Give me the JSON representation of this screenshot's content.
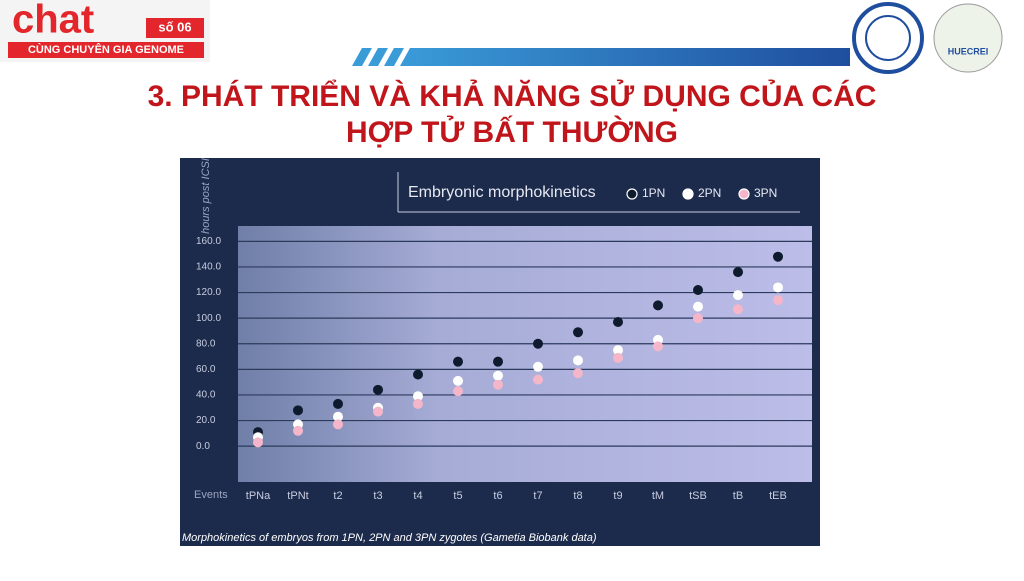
{
  "header": {
    "logo": "chat",
    "issue": "số 06",
    "tagline": "CÙNG CHUYÊN GIA GENOME",
    "title_lines": [
      "3. PHÁT TRIỂN VÀ KHẢ NĂNG SỬ DỤNG CỦA CÁC",
      "HỢP TỬ BẤT THƯỜNG"
    ],
    "partner_logo": "HUECREI"
  },
  "chart_data": {
    "type": "scatter",
    "title": "Embryonic morphokinetics",
    "y_label": "hours post ICSI",
    "x_label": "Events",
    "caption": "Morphokinetics of embryos from 1PN, 2PN and 3PN zygotes (Gametia Biobank data)",
    "categories": [
      "tPNa",
      "tPNt",
      "t2",
      "t3",
      "t4",
      "t5",
      "t6",
      "t7",
      "t8",
      "t9",
      "tM",
      "tSB",
      "tB",
      "tEB"
    ],
    "series": [
      {
        "name": "1PN",
        "color": "#0e1a2e",
        "values": [
          11,
          28,
          33,
          44,
          56,
          66,
          66,
          80,
          89,
          97,
          110,
          122,
          136,
          148
        ]
      },
      {
        "name": "2PN",
        "color": "#ffffff",
        "values": [
          7,
          17,
          23,
          30,
          39,
          51,
          55,
          62,
          67,
          75,
          83,
          109,
          118,
          124
        ]
      },
      {
        "name": "3PN",
        "color": "#f4b6c8",
        "values": [
          3,
          12,
          17,
          27,
          33,
          43,
          48,
          52,
          57,
          69,
          78,
          100,
          107,
          114
        ]
      }
    ],
    "ylim": [
      -28,
      172
    ],
    "yticks": [
      {
        "value": 0,
        "label": "0.0"
      },
      {
        "value": 20,
        "label": "20.0"
      },
      {
        "value": 40,
        "label": "40.0"
      },
      {
        "value": 60,
        "label": "60.0"
      },
      {
        "value": 80,
        "label": "80.0"
      },
      {
        "value": 100,
        "label": "100.0"
      },
      {
        "value": 120,
        "label": "120.0"
      },
      {
        "value": 140,
        "label": "140.0"
      },
      {
        "value": 160,
        "label": "160.0"
      }
    ],
    "grid": true
  }
}
